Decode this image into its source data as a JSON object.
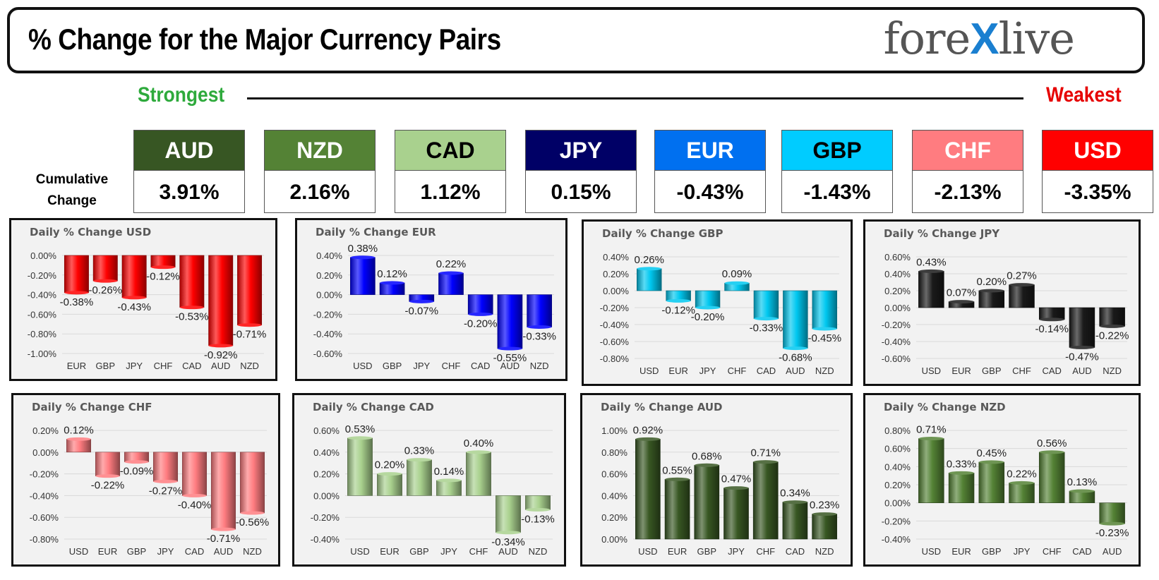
{
  "header": {
    "title": "% Change for the Major Currency Pairs",
    "logo_left": "fore",
    "logo_x": "X",
    "logo_right": "live"
  },
  "ranking": {
    "strongest_label": "Strongest",
    "weakest_label": "Weakest",
    "cumulative_label_line1": "Cumulative",
    "cumulative_label_line2": "Change",
    "currencies": [
      {
        "code": "AUD",
        "value": "3.91%",
        "head_bg": "#375623",
        "head_fg": "#ffffff"
      },
      {
        "code": "NZD",
        "value": "2.16%",
        "head_bg": "#548235",
        "head_fg": "#ffffff"
      },
      {
        "code": "CAD",
        "value": "1.12%",
        "head_bg": "#a9d18e",
        "head_fg": "#000000"
      },
      {
        "code": "JPY",
        "value": "0.15%",
        "head_bg": "#000066",
        "head_fg": "#ffffff"
      },
      {
        "code": "EUR",
        "value": "-0.43%",
        "head_bg": "#0070f0",
        "head_fg": "#ffffff"
      },
      {
        "code": "GBP",
        "value": "-1.43%",
        "head_bg": "#00ccff",
        "head_fg": "#000000"
      },
      {
        "code": "CHF",
        "value": "-2.13%",
        "head_bg": "#ff7c80",
        "head_fg": "#ffffff"
      },
      {
        "code": "USD",
        "value": "-3.35%",
        "head_bg": "#ff0000",
        "head_fg": "#ffffff"
      }
    ]
  },
  "chart_data": [
    {
      "type": "bar",
      "title": "Daily % Change USD",
      "color": "#ff0000",
      "categories": [
        "EUR",
        "GBP",
        "JPY",
        "CHF",
        "CAD",
        "AUD",
        "NZD"
      ],
      "values": [
        -0.38,
        -0.26,
        -0.43,
        -0.12,
        -0.53,
        -0.92,
        -0.71
      ],
      "labels": [
        "-0.38%",
        "-0.26%",
        "-0.43%",
        "-0.12%",
        "-0.53%",
        "-0.92%",
        "-0.71%"
      ],
      "yticks": [
        "0.00%",
        "-0.20%",
        "-0.40%",
        "-0.60%",
        "-0.80%",
        "-1.00%"
      ],
      "ylim": [
        -1.0,
        0.0
      ]
    },
    {
      "type": "bar",
      "title": "Daily % Change EUR",
      "color": "#0000ff",
      "categories": [
        "USD",
        "GBP",
        "JPY",
        "CHF",
        "CAD",
        "AUD",
        "NZD"
      ],
      "values": [
        0.38,
        0.12,
        -0.07,
        0.22,
        -0.2,
        -0.55,
        -0.33
      ],
      "labels": [
        "0.38%",
        "0.12%",
        "-0.07%",
        "0.22%",
        "-0.20%",
        "-0.55%",
        "-0.33%"
      ],
      "yticks": [
        "0.40%",
        "0.20%",
        "0.00%",
        "-0.20%",
        "-0.40%",
        "-0.60%"
      ],
      "ylim": [
        -0.6,
        0.4
      ]
    },
    {
      "type": "bar",
      "title": "Daily % Change GBP",
      "color": "#00c8f0",
      "categories": [
        "USD",
        "EUR",
        "JPY",
        "CHF",
        "CAD",
        "AUD",
        "NZD"
      ],
      "values": [
        0.26,
        -0.12,
        -0.2,
        0.09,
        -0.33,
        -0.68,
        -0.45
      ],
      "labels": [
        "0.26%",
        "-0.12%",
        "-0.20%",
        "0.09%",
        "-0.33%",
        "-0.68%",
        "-0.45%"
      ],
      "yticks": [
        "0.40%",
        "0.20%",
        "0.00%",
        "-0.20%",
        "-0.40%",
        "-0.60%",
        "-0.80%"
      ],
      "ylim": [
        -0.8,
        0.4
      ]
    },
    {
      "type": "bar",
      "title": "Daily % Change JPY",
      "color": "#1a1a1a",
      "categories": [
        "USD",
        "EUR",
        "GBP",
        "CHF",
        "CAD",
        "AUD",
        "NZD"
      ],
      "values": [
        0.43,
        0.07,
        0.2,
        0.27,
        -0.14,
        -0.47,
        -0.22
      ],
      "labels": [
        "0.43%",
        "0.07%",
        "0.20%",
        "0.27%",
        "-0.14%",
        "-0.47%",
        "-0.22%"
      ],
      "yticks": [
        "0.60%",
        "0.40%",
        "0.20%",
        "0.00%",
        "-0.20%",
        "-0.40%",
        "-0.60%"
      ],
      "ylim": [
        -0.6,
        0.6
      ]
    },
    {
      "type": "bar",
      "title": "Daily % Change CHF",
      "color": "#ff7c80",
      "categories": [
        "USD",
        "EUR",
        "GBP",
        "JPY",
        "CAD",
        "AUD",
        "NZD"
      ],
      "values": [
        0.12,
        -0.22,
        -0.09,
        -0.27,
        -0.4,
        -0.71,
        -0.56
      ],
      "labels": [
        "0.12%",
        "-0.22%",
        "-0.09%",
        "-0.27%",
        "-0.40%",
        "-0.71%",
        "-0.56%"
      ],
      "yticks": [
        "0.20%",
        "0.00%",
        "-0.20%",
        "-0.40%",
        "-0.60%",
        "-0.80%"
      ],
      "ylim": [
        -0.8,
        0.2
      ]
    },
    {
      "type": "bar",
      "title": "Daily % Change CAD",
      "color": "#a9d18e",
      "categories": [
        "USD",
        "EUR",
        "GBP",
        "JPY",
        "CHF",
        "AUD",
        "NZD"
      ],
      "values": [
        0.53,
        0.2,
        0.33,
        0.14,
        0.4,
        -0.34,
        -0.13
      ],
      "labels": [
        "0.53%",
        "0.20%",
        "0.33%",
        "0.14%",
        "0.40%",
        "-0.34%",
        "-0.13%"
      ],
      "yticks": [
        "0.60%",
        "0.40%",
        "0.20%",
        "0.00%",
        "-0.20%",
        "-0.40%"
      ],
      "ylim": [
        -0.4,
        0.6
      ]
    },
    {
      "type": "bar",
      "title": "Daily % Change AUD",
      "color": "#385723",
      "categories": [
        "USD",
        "EUR",
        "GBP",
        "JPY",
        "CHF",
        "CAD",
        "NZD"
      ],
      "values": [
        0.92,
        0.55,
        0.68,
        0.47,
        0.71,
        0.34,
        0.23
      ],
      "labels": [
        "0.92%",
        "0.55%",
        "0.68%",
        "0.47%",
        "0.71%",
        "0.34%",
        "0.23%"
      ],
      "yticks": [
        "1.00%",
        "0.80%",
        "0.60%",
        "0.40%",
        "0.20%",
        "0.00%"
      ],
      "ylim": [
        0.0,
        1.0
      ]
    },
    {
      "type": "bar",
      "title": "Daily % Change NZD",
      "color": "#548235",
      "categories": [
        "USD",
        "EUR",
        "GBP",
        "JPY",
        "CHF",
        "CAD",
        "AUD"
      ],
      "values": [
        0.71,
        0.33,
        0.45,
        0.22,
        0.56,
        0.13,
        -0.23
      ],
      "labels": [
        "0.71%",
        "0.33%",
        "0.45%",
        "0.22%",
        "0.56%",
        "0.13%",
        "-0.23%"
      ],
      "yticks": [
        "0.80%",
        "0.60%",
        "0.40%",
        "0.20%",
        "0.00%",
        "-0.20%",
        "-0.40%"
      ],
      "ylim": [
        -0.4,
        0.8
      ]
    }
  ]
}
